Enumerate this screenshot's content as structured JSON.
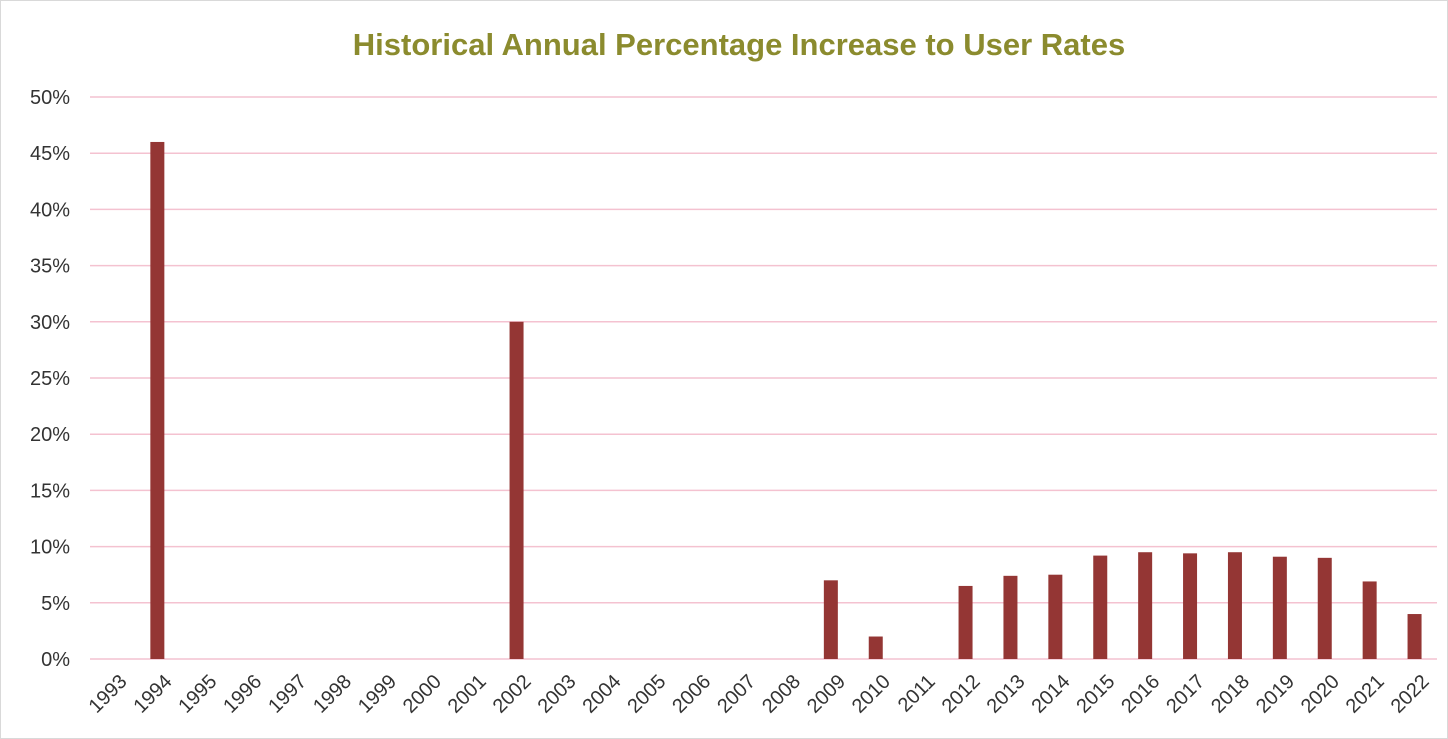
{
  "chart_data": {
    "type": "bar",
    "title": "Historical Annual Percentage Increase to User Rates",
    "xlabel": "",
    "ylabel": "",
    "ylim": [
      0,
      50
    ],
    "y_ticks": [
      "0%",
      "5%",
      "10%",
      "15%",
      "20%",
      "25%",
      "30%",
      "35%",
      "40%",
      "45%",
      "50%"
    ],
    "grid": true,
    "legend": "none",
    "categories": [
      "1993",
      "1994",
      "1995",
      "1996",
      "1997",
      "1998",
      "1999",
      "2000",
      "2001",
      "2002",
      "2003",
      "2004",
      "2005",
      "2006",
      "2007",
      "2008",
      "2009",
      "2010",
      "2011",
      "2012",
      "2013",
      "2014",
      "2015",
      "2016",
      "2017",
      "2018",
      "2019",
      "2020",
      "2021",
      "2022"
    ],
    "values": [
      0,
      46,
      0,
      0,
      0,
      0,
      0,
      0,
      0,
      30,
      0,
      0,
      0,
      0,
      0,
      0,
      7,
      2,
      0,
      6.5,
      7.4,
      7.5,
      9.2,
      9.5,
      9.4,
      9.5,
      9.1,
      9.0,
      6.9,
      4.0
    ],
    "colors": {
      "bar": "#943634",
      "grid": "#f4c2d0",
      "title": "#8b8b2e"
    }
  }
}
